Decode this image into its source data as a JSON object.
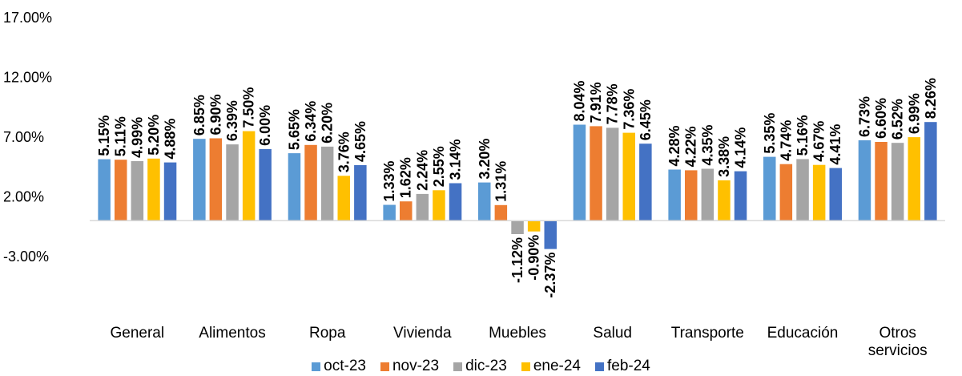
{
  "chart_data": {
    "type": "bar",
    "categories": [
      "General",
      "Alimentos",
      "Ropa",
      "Vivienda",
      "Muebles",
      "Salud",
      "Transporte",
      "Educación",
      "Otros servicios"
    ],
    "series": [
      {
        "name": "oct-23",
        "color": "#5B9BD5",
        "values": [
          5.15,
          6.85,
          5.65,
          1.33,
          3.2,
          8.04,
          4.28,
          5.35,
          6.73
        ],
        "labels": [
          "5.15%",
          "6.85%",
          "5.65%",
          "1.33%",
          "3.20%",
          "8.04%",
          "4.28%",
          "5.35%",
          "6.73%"
        ]
      },
      {
        "name": "nov-23",
        "color": "#ED7D31",
        "values": [
          5.11,
          6.9,
          6.34,
          1.62,
          1.31,
          7.91,
          4.22,
          4.74,
          6.6
        ],
        "labels": [
          "5.11%",
          "6.90%",
          "6.34%",
          "1.62%",
          "1.31%",
          "7.91%",
          "4.22%",
          "4.74%",
          "6.60%"
        ]
      },
      {
        "name": "dic-23",
        "color": "#A5A5A5",
        "values": [
          4.99,
          6.39,
          6.2,
          2.24,
          -1.12,
          7.78,
          4.35,
          5.16,
          6.52
        ],
        "labels": [
          "4.99%",
          "6.39%",
          "6.20%",
          "2.24%",
          "-1.12%",
          "7.78%",
          "4.35%",
          "5.16%",
          "6.52%"
        ]
      },
      {
        "name": "ene-24",
        "color": "#FFC000",
        "values": [
          5.2,
          7.5,
          3.76,
          2.55,
          -0.9,
          7.36,
          3.38,
          4.67,
          6.99
        ],
        "labels": [
          "5.20%",
          "7.50%",
          "3.76%",
          "2.55%",
          "-0.90%",
          "7.36%",
          "3.38%",
          "4.67%",
          "6.99%"
        ]
      },
      {
        "name": "feb-24",
        "color": "#4472C4",
        "values": [
          4.88,
          6.0,
          4.65,
          3.14,
          -2.37,
          6.45,
          4.14,
          4.41,
          8.26
        ],
        "labels": [
          "4.88%",
          "6.00%",
          "4.65%",
          "3.14%",
          "-2.37%",
          "6.45%",
          "4.14%",
          "4.41%",
          "8.26%"
        ]
      }
    ],
    "yticks": [
      "17.00%",
      "12.00%",
      "7.00%",
      "2.00%",
      "-3.00%"
    ],
    "ytick_values": [
      17,
      12,
      7,
      2,
      -3
    ],
    "ylim": [
      -3,
      17
    ],
    "grid": false,
    "legend": "bottom"
  }
}
